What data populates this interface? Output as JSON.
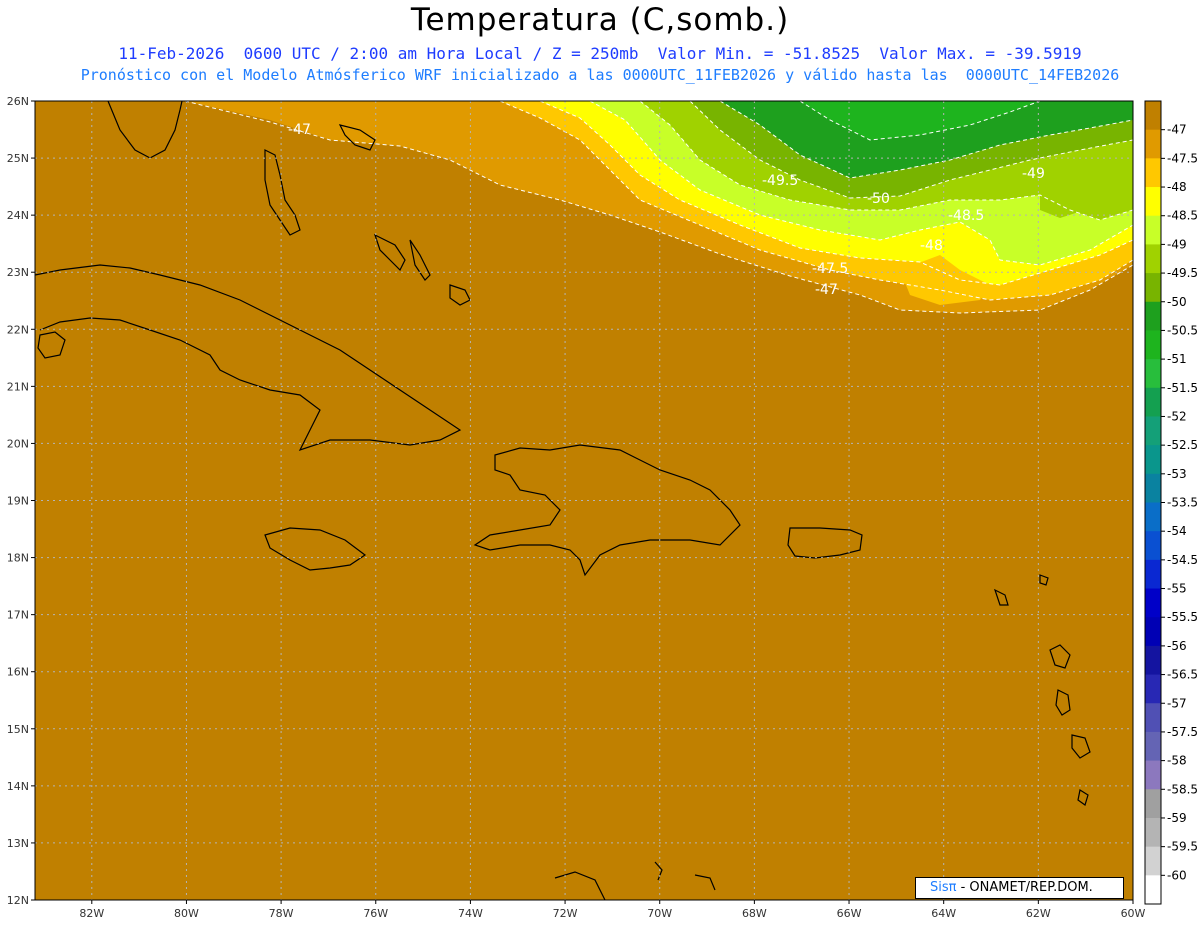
{
  "title": "Temperatura (C,somb.)",
  "subtitle1": "11-Feb-2026  0600 UTC / 2:00 am Hora Local / Z = 250mb  Valor Min. = -51.8525  Valor Max. = -39.5919",
  "subtitle2": "Pronóstico con el Modelo Atmósferico WRF inicializado a las 0000UTC_11FEB2026 y válido hasta las  0000UTC_14FEB2026",
  "axes": {
    "lat_labels": [
      "26N",
      "25N",
      "24N",
      "23N",
      "22N",
      "21N",
      "20N",
      "19N",
      "18N",
      "17N",
      "16N",
      "15N",
      "14N",
      "13N",
      "12N"
    ],
    "lon_labels": [
      "82W",
      "80W",
      "78W",
      "76W",
      "74W",
      "72W",
      "70W",
      "68W",
      "66W",
      "64W",
      "62W",
      "60W"
    ],
    "lat_range": [
      12,
      26
    ],
    "lon_range": [
      -83.2,
      -60
    ]
  },
  "colorbar": {
    "labels": [
      "-47",
      "-47.5",
      "-48",
      "-48.5",
      "-49",
      "-49.5",
      "-50",
      "-50.5",
      "-51",
      "-51.5",
      "-52",
      "-52.5",
      "-53",
      "-53.5",
      "-54",
      "-54.5",
      "-55",
      "-55.5",
      "-56",
      "-56.5",
      "-57",
      "-57.5",
      "-58",
      "-58.5",
      "-59",
      "-59.5",
      "-60"
    ],
    "colors": [
      "#c08000",
      "#e09a00",
      "#ffc800",
      "#ffff00",
      "#c8ff28",
      "#a0d200",
      "#78b400",
      "#1ea01e",
      "#1eb41e",
      "#28be3c",
      "#14a050",
      "#14a078",
      "#0a968c",
      "#0a82a0",
      "#0a6ec8",
      "#0a50d2",
      "#0a28d2",
      "#0000c8",
      "#0000b4",
      "#1414a0",
      "#2828b4",
      "#5050b4",
      "#6464b4",
      "#8c78be",
      "#a0a0a0",
      "#b4b4b4",
      "#d2d2d2",
      "#ffffff"
    ]
  },
  "contour_labels": [
    "-47",
    "-49.5",
    "-50",
    "-49",
    "-48.5",
    "-48",
    "-47.5",
    "-47"
  ],
  "credit": {
    "brand": "Sisπ",
    "text": " - ONAMET/REP.DOM."
  },
  "colors": {
    "base_field": "#c08000",
    "title_blue": "#1e3cff",
    "subtitle_blue": "#1e7dff"
  }
}
